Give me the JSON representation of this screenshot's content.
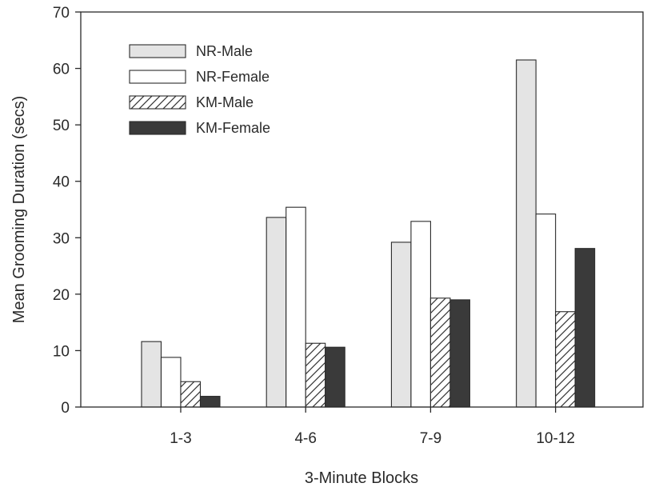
{
  "chart_data": {
    "type": "bar",
    "title": "",
    "xlabel": "3-Minute Blocks",
    "ylabel": "Mean Grooming Duration (secs)",
    "ylim": [
      0,
      70
    ],
    "yticks": [
      0,
      10,
      20,
      30,
      40,
      50,
      60,
      70
    ],
    "categories": [
      "1-3",
      "4-6",
      "7-9",
      "10-12"
    ],
    "legend_position": "top-left",
    "series": [
      {
        "name": "NR-Male",
        "values": [
          11.6,
          33.6,
          29.2,
          61.5
        ],
        "fill": "light-gray",
        "color": "#e4e4e4"
      },
      {
        "name": "NR-Female",
        "values": [
          8.8,
          35.4,
          32.9,
          34.2
        ],
        "fill": "white",
        "color": "#ffffff"
      },
      {
        "name": "KM-Male",
        "values": [
          4.5,
          11.3,
          19.3,
          16.9
        ],
        "fill": "hatched",
        "color": "#ffffff"
      },
      {
        "name": "KM-Female",
        "values": [
          1.9,
          10.6,
          19.0,
          28.1
        ],
        "fill": "dark",
        "color": "#3a3a3a"
      }
    ]
  }
}
